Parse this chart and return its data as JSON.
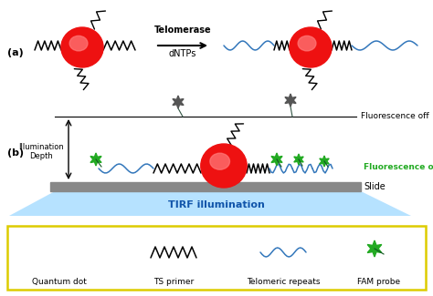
{
  "background_color": "#ffffff",
  "fig_width": 4.74,
  "fig_height": 3.25,
  "dpi": 100,
  "panel_a_label": "(a)",
  "panel_b_label": "(b)",
  "telomerase_label": "Telomerase",
  "dntps_label": "dNTPs",
  "fluorescence_off_label": "Fluorescence off",
  "fluorescence_on_label": "Fluorescence on",
  "illumination_depth_label": "Illumination\nDepth",
  "slide_label": "Slide",
  "tirf_label": "TIRF illumination",
  "legend_qd": "Quantum dot",
  "legend_ts": "TS primer",
  "legend_tel": "Telomeric repeats",
  "legend_fam": "FAM probe",
  "red_color": "#ee1111",
  "red_light": "#ff7777",
  "green_color": "#22aa22",
  "blue_color": "#3377bb",
  "black_color": "#111111",
  "dark_gray": "#555555",
  "yellow_border": "#ddcc00",
  "slide_color": "#888888",
  "tirf_top": "#aaddff",
  "tirf_bot": "#ffffff"
}
